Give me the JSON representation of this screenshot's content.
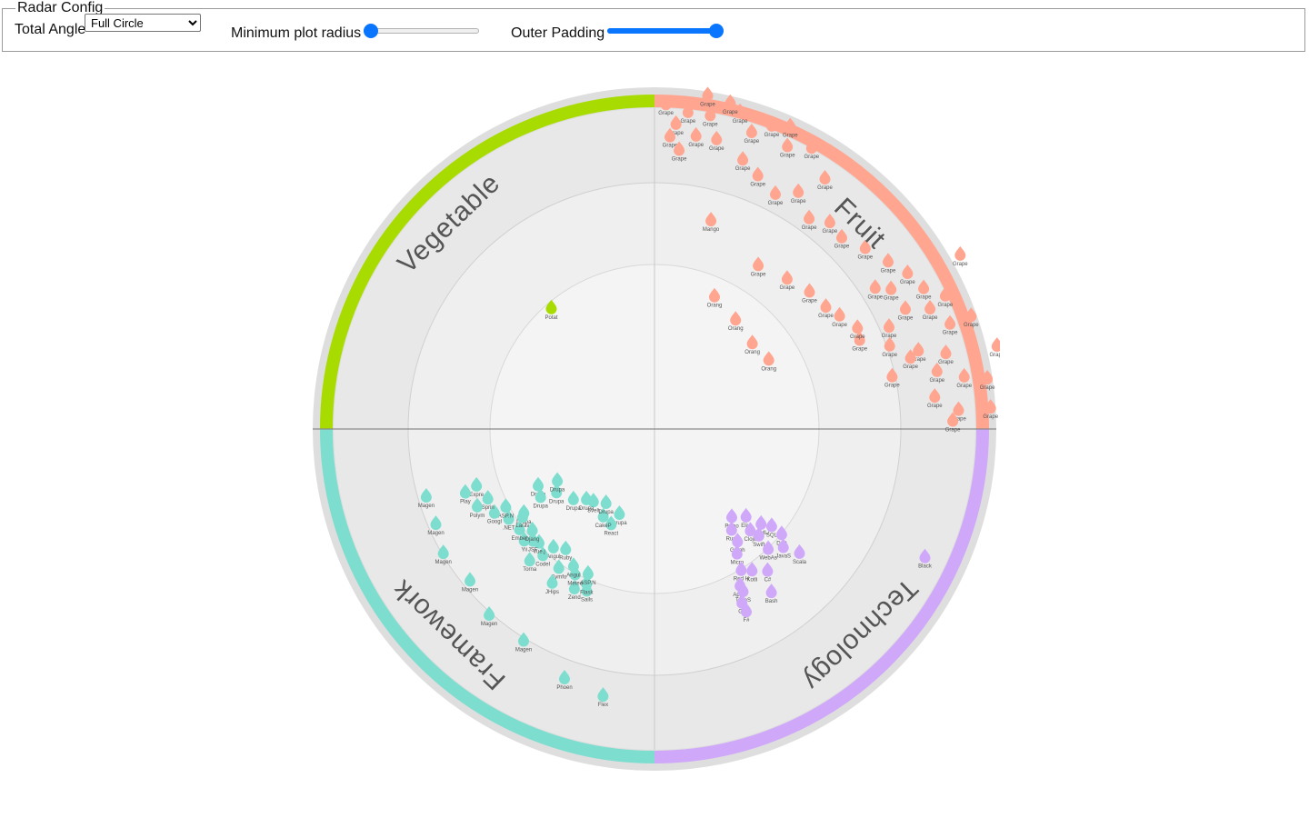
{
  "config": {
    "legend": "Radar Config",
    "total_angle_label": "Total Angle",
    "total_angle_value": "Full Circle",
    "min_radius_label": "Minimum plot radius",
    "min_radius_value": 0,
    "outer_padding_label": "Outer Padding",
    "outer_padding_value": 1
  },
  "quadrants": [
    {
      "name": "Fruit",
      "color": "#ffa590",
      "points": [
        [
          "Grape",
          60,
          11
        ],
        [
          "Grape",
          65,
          10
        ],
        [
          "Grape",
          70,
          10.5
        ],
        [
          "Grape",
          76,
          11
        ],
        [
          "Grape",
          81,
          10.5
        ],
        [
          "Grape",
          86,
          10.5
        ],
        [
          "Grape",
          70,
          9.8
        ],
        [
          "Grape",
          80,
          9.8
        ],
        [
          "Grape",
          62,
          9.5
        ],
        [
          "Grape",
          58,
          9.3
        ],
        [
          "Grape",
          66,
          9.4
        ],
        [
          "Grape",
          75,
          9.4
        ],
        [
          "Grape",
          86,
          9.5
        ],
        [
          "Grape",
          54,
          9
        ],
        [
          "Grape",
          59,
          8.6
        ],
        [
          "Grape",
          64,
          8.7
        ],
        [
          "Grape",
          73,
          8.6
        ],
        [
          "Grape",
          78,
          9
        ],
        [
          "Grape",
          83,
          8.8
        ],
        [
          "Grape",
          88,
          9.3
        ],
        [
          "Grape",
          66,
          8
        ],
        [
          "Grape",
          70,
          7.8
        ],
        [
          "Grape",
          74,
          8.3
        ],
        [
          "Grape",
          77,
          7.6
        ],
        [
          "Grape",
          49,
          8.7
        ],
        [
          "Grape",
          57,
          8.2
        ],
        [
          "Grape",
          44,
          8.4
        ],
        [
          "Grape",
          40,
          8.5
        ],
        [
          "Grape",
          36,
          8.2
        ],
        [
          "Grape",
          31,
          8.7
        ],
        [
          "Grape",
          27,
          8.3
        ],
        [
          "Grape",
          22,
          8.6
        ],
        [
          "Grape",
          18,
          8.9
        ],
        [
          "Grape",
          25,
          9.8
        ],
        [
          "Grape",
          34,
          9.5
        ],
        [
          "Grape",
          18,
          9.8
        ],
        [
          "Grape",
          15,
          10.3
        ],
        [
          "Grape",
          21,
          10.2
        ],
        [
          "Grape",
          29,
          10.1
        ],
        [
          "Grape",
          24,
          10.4
        ],
        [
          "Grape",
          10,
          10
        ],
        [
          "Grape",
          13,
          10.5
        ],
        [
          "Grape",
          6,
          10
        ],
        [
          "Grape",
          2,
          10.2
        ],
        [
          "Grape",
          4,
          9.6
        ],
        [
          "Grape",
          8,
          9.3
        ],
        [
          "Grape",
          3,
          9.2
        ],
        [
          "Grape",
          5,
          8.8
        ],
        [
          "Grape",
          9,
          10.6
        ],
        [
          "Grape",
          12,
          9.3
        ],
        [
          "Grape",
          66,
          7
        ],
        [
          "Grape",
          58,
          6.8
        ],
        [
          "Grape",
          48,
          6.5
        ],
        [
          "Grape",
          41,
          6.3
        ],
        [
          "Grape",
          32,
          6.1
        ],
        [
          "Grape",
          63,
          7.1
        ],
        [
          "Grape",
          54,
          6.6
        ],
        [
          "Orange",
          58,
          4.2
        ],
        [
          "Orange",
          48,
          4.1
        ],
        [
          "Orange",
          36,
          4.3
        ],
        [
          "Orange",
          24,
          4.6
        ],
        [
          "Mango",
          15,
          6.8
        ]
      ]
    },
    {
      "name": "Technology",
      "color": "#cfa8fa",
      "points": [
        [
          "Python",
          48,
          3.6
        ],
        [
          "Elixir",
          43,
          3.9
        ],
        [
          "HTML/CSS",
          41,
          4.4
        ],
        [
          "Rust",
          52,
          3.9
        ],
        [
          "Clojure",
          46,
          4.3
        ],
        [
          "SQL",
          39,
          4.7
        ],
        [
          "GraphQL",
          53,
          4.3
        ],
        [
          "Swift",
          45,
          4.6
        ],
        [
          "Dart",
          39,
          5.1
        ],
        [
          "Microsoft",
          56,
          4.6
        ],
        [
          "WebAssembly",
          46,
          5.1
        ],
        [
          "JavaScript",
          42,
          5.4
        ],
        [
          "Red Hat",
          58,
          5.1
        ],
        [
          "Apple",
          61,
          5.5
        ],
        [
          "Kotlin",
          55,
          5.3
        ],
        [
          "TypeScript",
          61,
          5.7
        ],
        [
          "C#",
          51,
          5.6
        ],
        [
          "Scala",
          40,
          5.9
        ],
        [
          "Go",
          63,
          6
        ],
        [
          "Bash",
          54,
          6.2
        ],
        [
          "F#",
          63,
          6.3
        ],
        [
          "Black",
          25,
          9.3
        ]
      ]
    },
    {
      "name": "Framework",
      "color": "#7ddecf",
      "points": [
        [
          "Drupal",
          23,
          2.8
        ],
        [
          "React",
          25,
          3.2
        ],
        [
          "CakePHP",
          31,
          3.1
        ],
        [
          "Drupal",
          34,
          2.7
        ],
        [
          "Svelte",
          41,
          2.9
        ],
        [
          "Drupal",
          45,
          3
        ],
        [
          "Drupal",
          50,
          3.3
        ],
        [
          "Drupal",
          58,
          3.6
        ],
        [
          "Drupal",
          63,
          3.4
        ],
        [
          "Drupal",
          65,
          4
        ],
        [
          "Drupal",
          60,
          4.1
        ],
        [
          "Drupal",
          58,
          4.8
        ],
        [
          "Sails",
          23,
          5.4
        ],
        [
          "Flask",
          24,
          5.2
        ],
        [
          "ASP.NET",
          25,
          4.9
        ],
        [
          "Zend",
          27,
          5.5
        ],
        [
          "Meteor",
          29,
          5.1
        ],
        [
          "Angular",
          31,
          4.9
        ],
        [
          "Symfony",
          35,
          5.2
        ],
        [
          "Ruby",
          37,
          4.6
        ],
        [
          "JHipster",
          34,
          5.7
        ],
        [
          "Angular",
          41,
          4.8
        ],
        [
          "CodeIgniter",
          42,
          5.2
        ],
        [
          "Tornado",
          44,
          5.6
        ],
        [
          "Vue.js",
          46,
          5
        ],
        [
          "JSF",
          48,
          5.1
        ],
        [
          "Yii",
          50,
          5.3
        ],
        [
          "Django",
          51,
          4.9
        ],
        [
          "Ember",
          54,
          5.2
        ],
        [
          "Laravel",
          57,
          4.9
        ],
        [
          ".NET",
          59,
          5.3
        ],
        [
          "ASP.NET",
          63,
          5.2
        ],
        [
          "Google",
          63,
          5.6
        ],
        [
          "Spring",
          68,
          5.6
        ],
        [
          "Polymer",
          67,
          6
        ],
        [
          "Express",
          73,
          5.8
        ],
        [
          "Play",
          72,
          6.2
        ],
        [
          "Flex",
          11,
          8.4
        ],
        [
          "Phoenix",
          20,
          8.2
        ],
        [
          "Magento",
          32,
          7.7
        ],
        [
          "Magento",
          42,
          7.7
        ],
        [
          "Magento",
          51,
          7.4
        ],
        [
          "Magento",
          60,
          7.6
        ],
        [
          "Magento",
          67,
          7.4
        ],
        [
          "Magento",
          74,
          7.4
        ]
      ]
    },
    {
      "name": "Vegetable",
      "color": "#a8dc00",
      "points": [
        [
          "Potato",
          50,
          5
        ]
      ]
    }
  ]
}
